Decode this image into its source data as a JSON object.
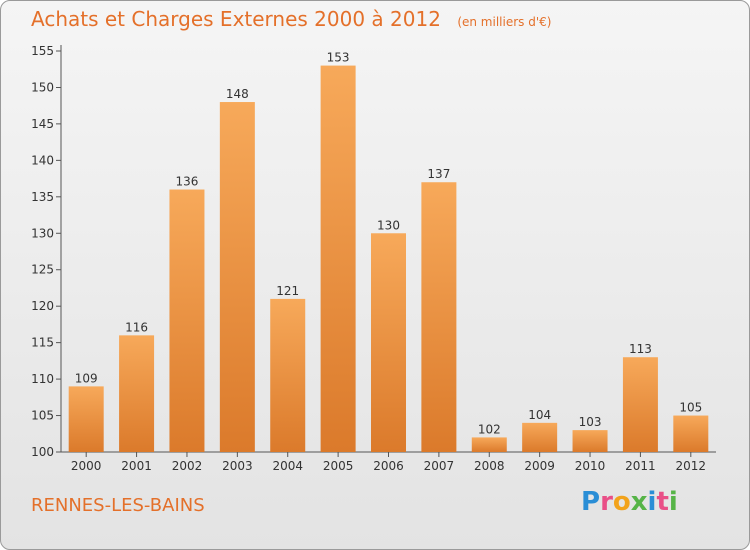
{
  "header": {
    "title": "Achats et Charges Externes 2000 à 2012",
    "subtitle": "(en milliers d'€)"
  },
  "footer": {
    "location": "RENNES-LES-BAINS",
    "logo_letters": [
      "P",
      "r",
      "o",
      "x",
      "i",
      "t",
      "i"
    ],
    "logo_colors": [
      "#2a8ed6",
      "#e94f87",
      "#f2a31b",
      "#56b447",
      "#2a8ed6",
      "#e94f87",
      "#56b447"
    ]
  },
  "colors": {
    "bar_light": "#f7a95a",
    "bar_dark": "#db7a2b",
    "title": "#e4702a"
  },
  "chart_data": {
    "type": "bar",
    "categories": [
      "2000",
      "2001",
      "2002",
      "2003",
      "2004",
      "2005",
      "2006",
      "2007",
      "2008",
      "2009",
      "2010",
      "2011",
      "2012"
    ],
    "values": [
      109,
      116,
      136,
      148,
      121,
      153,
      130,
      137,
      102,
      104,
      103,
      113,
      105
    ],
    "ylim": [
      100,
      155
    ],
    "yticks": [
      100,
      105,
      110,
      115,
      120,
      125,
      130,
      135,
      140,
      145,
      150,
      155
    ],
    "grid": false,
    "data_labels": true
  }
}
